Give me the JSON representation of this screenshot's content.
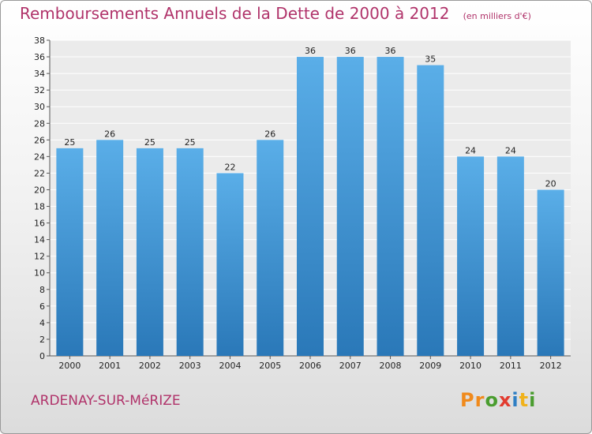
{
  "header": {
    "title": "Remboursements Annuels de la Dette de 2000 à 2012",
    "subtitle": "(en milliers d'€)"
  },
  "footer": {
    "place": "ARDENAY-SUR-MéRIZE",
    "logo_text": "Proxiti"
  },
  "colors": {
    "accent": "#b0336a",
    "bar_top": "#5aaee8",
    "bar_bottom": "#2a78b8"
  },
  "chart_data": {
    "type": "bar",
    "categories": [
      "2000",
      "2001",
      "2002",
      "2003",
      "2004",
      "2005",
      "2006",
      "2007",
      "2008",
      "2009",
      "2010",
      "2011",
      "2012"
    ],
    "values": [
      25,
      26,
      25,
      25,
      22,
      26,
      36,
      36,
      36,
      35,
      24,
      24,
      20
    ],
    "ylim": [
      0,
      38
    ],
    "yticks": [
      0,
      2,
      4,
      6,
      8,
      10,
      12,
      14,
      16,
      18,
      20,
      22,
      24,
      26,
      28,
      30,
      32,
      34,
      36,
      38
    ],
    "grid": true,
    "data_labels": true
  }
}
